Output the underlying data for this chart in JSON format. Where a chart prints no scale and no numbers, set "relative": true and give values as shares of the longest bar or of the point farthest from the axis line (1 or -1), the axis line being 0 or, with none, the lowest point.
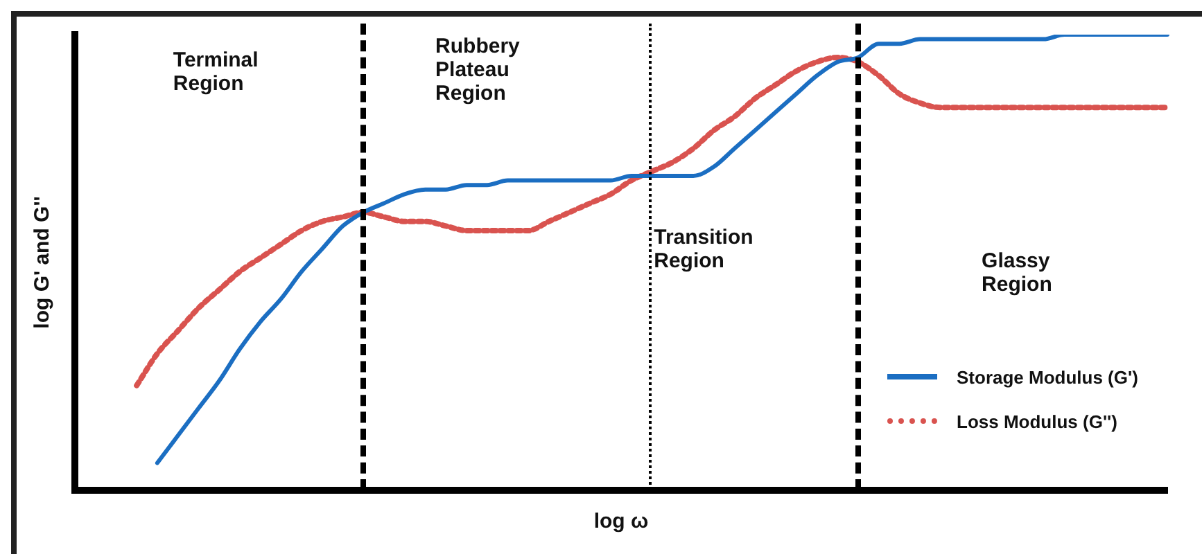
{
  "chart_data": {
    "type": "line",
    "relative": true,
    "xlabel": "log ω",
    "ylabel": "log G' and G''",
    "legend": "bottom right",
    "marker": "none",
    "tick_labels": false,
    "grid": false,
    "categories": [
      null,
      null,
      null,
      null,
      null,
      null,
      null,
      null,
      null,
      null,
      null,
      null,
      null,
      null,
      null,
      null,
      null,
      null,
      null,
      null,
      null,
      null,
      null,
      null,
      null,
      null,
      null,
      null,
      null,
      null,
      null,
      null,
      null,
      null,
      null,
      null,
      null,
      null,
      null,
      null,
      null,
      null,
      null,
      null,
      null,
      null,
      null,
      null,
      null,
      null,
      null,
      null,
      null,
      null
    ],
    "series": [
      {
        "name": "Storage Modulus (G')",
        "color": "#1b6ec2",
        "line_style": "solid",
        "values": [
          null,
          null,
          null,
          null,
          0.06,
          0.12,
          0.18,
          0.24,
          0.31,
          0.37,
          0.42,
          0.48,
          0.53,
          0.58,
          0.61,
          0.63,
          0.65,
          0.66,
          0.66,
          0.67,
          0.67,
          0.68,
          0.68,
          0.68,
          0.68,
          0.68,
          0.68,
          0.69,
          0.69,
          0.69,
          0.69,
          0.71,
          0.75,
          0.79,
          0.83,
          0.87,
          0.91,
          0.94,
          0.95,
          0.98,
          0.98,
          0.99,
          0.99,
          0.99,
          0.99,
          0.99,
          0.99,
          0.99,
          1,
          1,
          1,
          1,
          1,
          1
        ]
      },
      {
        "name": "Loss Modulus (G'')",
        "color": "#d9534f",
        "line_style": "dotted",
        "values": [
          null,
          null,
          null,
          0.23,
          0.3,
          0.35,
          0.4,
          0.44,
          0.48,
          0.51,
          0.54,
          0.57,
          0.59,
          0.6,
          0.61,
          0.6,
          0.59,
          0.59,
          0.58,
          0.57,
          0.57,
          0.57,
          0.57,
          0.59,
          0.61,
          0.63,
          0.65,
          0.68,
          0.7,
          0.72,
          0.75,
          0.79,
          0.82,
          0.86,
          0.89,
          0.92,
          0.94,
          0.95,
          0.94,
          0.91,
          0.87,
          0.85,
          0.84,
          0.84,
          0.84,
          0.84,
          0.84,
          0.84,
          0.84,
          0.84,
          0.84,
          0.84,
          0.84,
          0.84
        ]
      }
    ],
    "annotations": [
      "Terminal\nRegion",
      "Rubbery\nPlateau\nRegion",
      "Transition\nRegion",
      "Glassy\nRegion"
    ]
  }
}
